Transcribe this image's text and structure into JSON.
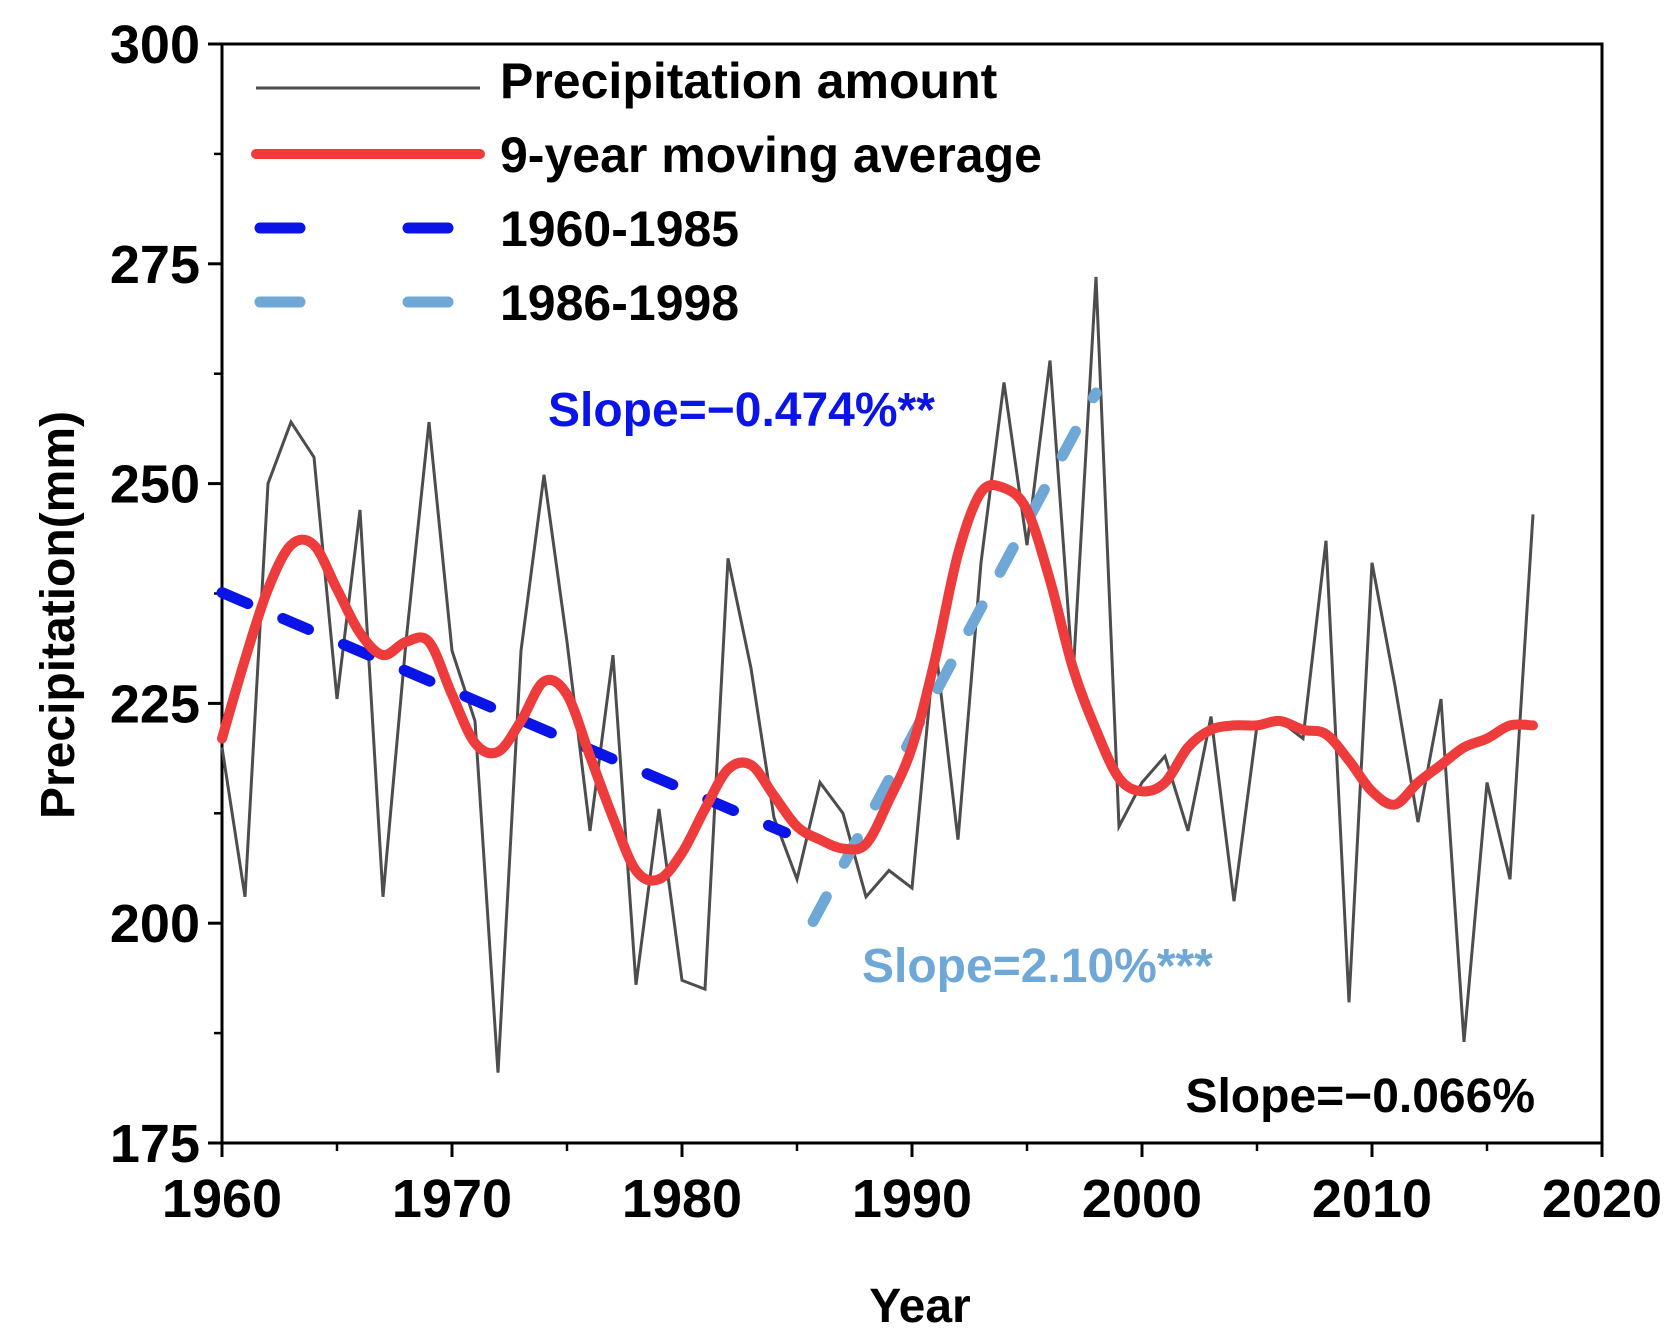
{
  "chart_data": {
    "type": "line",
    "xlabel": "Year",
    "ylabel": "Precipitation(mm)",
    "xlim": [
      1960,
      2020
    ],
    "ylim": [
      175,
      300
    ],
    "xticks": [
      1960,
      1970,
      1980,
      1990,
      2000,
      2010,
      2020
    ],
    "yticks": [
      175,
      200,
      225,
      250,
      275,
      300
    ],
    "series": [
      {
        "name": "Precipitation amount",
        "color": "#4d4d4d",
        "x": [
          1960,
          1961,
          1962,
          1963,
          1964,
          1965,
          1966,
          1967,
          1968,
          1969,
          1970,
          1971,
          1972,
          1973,
          1974,
          1975,
          1976,
          1977,
          1978,
          1979,
          1980,
          1981,
          1982,
          1983,
          1984,
          1985,
          1986,
          1987,
          1988,
          1989,
          1990,
          1991,
          1992,
          1993,
          1994,
          1995,
          1996,
          1997,
          1998,
          1999,
          2000,
          2001,
          2002,
          2003,
          2004,
          2005,
          2006,
          2007,
          2008,
          2009,
          2010,
          2011,
          2012,
          2013,
          2014,
          2015,
          2016,
          2017
        ],
        "values": [
          220,
          203,
          250,
          257,
          253,
          225.5,
          247,
          203,
          232,
          257,
          231,
          223,
          183,
          231,
          251,
          232,
          210.5,
          230.5,
          193,
          213,
          193.5,
          192.5,
          241.5,
          229,
          212,
          205,
          216,
          212.5,
          203,
          206,
          204,
          232,
          209.5,
          241,
          261.5,
          243,
          264,
          228,
          273.5,
          211,
          216,
          219,
          210.5,
          223.5,
          202.5,
          222.5,
          223,
          221,
          243.5,
          191,
          241,
          227,
          211.5,
          225.5,
          186.5,
          216,
          205,
          246.5
        ]
      },
      {
        "name": "9-year moving average",
        "color": "#ee3b3b",
        "x": [
          1960,
          1961,
          1962,
          1963,
          1964,
          1965,
          1966,
          1967,
          1968,
          1969,
          1970,
          1971,
          1972,
          1973,
          1974,
          1975,
          1976,
          1977,
          1978,
          1979,
          1980,
          1981,
          1982,
          1983,
          1984,
          1985,
          1986,
          1987,
          1988,
          1989,
          1990,
          1991,
          1992,
          1993,
          1994,
          1995,
          1996,
          1997,
          1998,
          1999,
          2000,
          2001,
          2002,
          2003,
          2004,
          2005,
          2006,
          2007,
          2008,
          2009,
          2010,
          2011,
          2012,
          2013,
          2014,
          2015,
          2016,
          2017
        ],
        "values": [
          221,
          230,
          238,
          243,
          243,
          238,
          233,
          230.5,
          232,
          232,
          226,
          220.5,
          219.5,
          223,
          227.5,
          226,
          219,
          212,
          206,
          205,
          208,
          213,
          217.5,
          218,
          214.5,
          211,
          209.5,
          208.5,
          209,
          214,
          220,
          230,
          242,
          249,
          249.5,
          247,
          239,
          229,
          222,
          216.5,
          215,
          216,
          220,
          222,
          222.5,
          222.5,
          223,
          222,
          221.5,
          218.5,
          215,
          213.5,
          216,
          218,
          220,
          221,
          222.5,
          222.5
        ]
      },
      {
        "name": "1960-1985",
        "color": "#0a14e6",
        "x": [
          1960,
          1984.5
        ],
        "values": [
          237.6,
          210.3
        ]
      },
      {
        "name": "1986-1998",
        "color": "#6fa8d6",
        "x": [
          1985.7,
          1998
        ],
        "values": [
          200.2,
          260.3
        ]
      }
    ],
    "annotations": [
      {
        "text": "Slope=−0.474%**",
        "color": "#0a14e6"
      },
      {
        "text": "Slope=2.10%***",
        "color": "#6fa8d6"
      },
      {
        "text": "Slope=−0.066%",
        "color": "#000000"
      }
    ]
  }
}
